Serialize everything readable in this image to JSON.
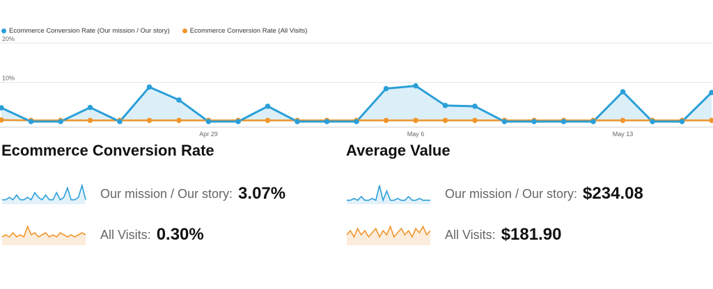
{
  "legend": {
    "series1": "Ecommerce Conversion Rate (Our mission / Our story)",
    "series2": "Ecommerce Conversion Rate (All Visits)"
  },
  "colors": {
    "series1": "#2a9fd8",
    "series2": "#f0962b",
    "fill1": "#dceff9",
    "grid": "#e6e6e6"
  },
  "chart_data": {
    "type": "area",
    "x": [
      "Apr 22",
      "Apr 23",
      "Apr 24",
      "Apr 25",
      "Apr 26",
      "Apr 27",
      "Apr 28",
      "Apr 29",
      "Apr 30",
      "May 1",
      "May 2",
      "May 3",
      "May 4",
      "May 5",
      "May 6",
      "May 7",
      "May 8",
      "May 9",
      "May 10",
      "May 11",
      "May 12",
      "May 13",
      "May 14",
      "May 15",
      "May 16"
    ],
    "xtick_labels": [
      "Apr 29",
      "May 6",
      "May 13"
    ],
    "ytick_labels": [
      "20%",
      "10%"
    ],
    "ylim": [
      0,
      20
    ],
    "series": [
      {
        "name": "Ecommerce Conversion Rate (Our mission / Our story)",
        "values": [
          3.5,
          0,
          0,
          3.6,
          0,
          8.8,
          5.5,
          0,
          0,
          3.9,
          0,
          0,
          0,
          8.4,
          9.1,
          4.1,
          3.9,
          0,
          0,
          0,
          0,
          7.6,
          0,
          0,
          7.4
        ]
      },
      {
        "name": "Ecommerce Conversion Rate (All Visits)",
        "values": [
          0.4,
          0.3,
          0.3,
          0.3,
          0.3,
          0.3,
          0.3,
          0.3,
          0.3,
          0.3,
          0.3,
          0.3,
          0.3,
          0.3,
          0.3,
          0.3,
          0.3,
          0.3,
          0.3,
          0.3,
          0.3,
          0.3,
          0.3,
          0.3,
          0.3
        ]
      }
    ]
  },
  "sections": {
    "conversion": {
      "title": "Ecommerce Conversion Rate",
      "row1": {
        "label": "Our mission / Our story:",
        "value": "3.07%"
      },
      "row2": {
        "label": "All Visits:",
        "value": "0.30%"
      }
    },
    "average": {
      "title": "Average Value",
      "row1": {
        "label": "Our mission / Our story:",
        "value": "$234.08"
      },
      "row2": {
        "label": "All Visits:",
        "value": "$181.90"
      }
    }
  }
}
